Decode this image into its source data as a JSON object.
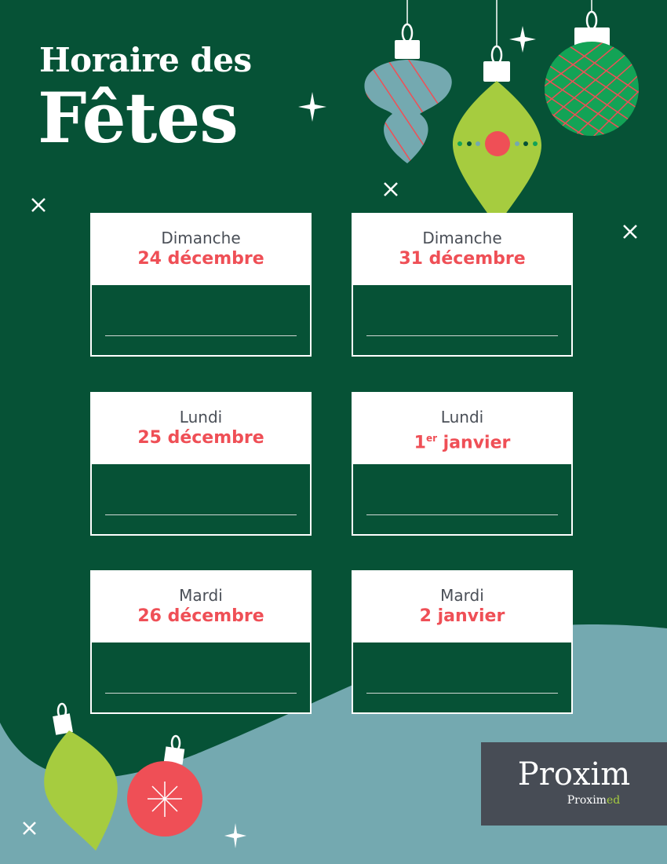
{
  "title": {
    "line1": "Horaire des",
    "line2": "Fêtes"
  },
  "cards": [
    {
      "day": "Dimanche",
      "date": "24 décembre",
      "sup": ""
    },
    {
      "day": "Dimanche",
      "date": "31 décembre",
      "sup": ""
    },
    {
      "day": "Lundi",
      "date": "25 décembre",
      "sup": ""
    },
    {
      "day": "Lundi",
      "date_pre": "1",
      "sup": "er",
      "date": " janvier"
    },
    {
      "day": "Mardi",
      "date": "26 décembre",
      "sup": ""
    },
    {
      "day": "Mardi",
      "date": "2 janvier",
      "sup": ""
    }
  ],
  "logo": {
    "brand": "Proxim",
    "sub_brand": "Proximed",
    "sub_main": "Proxim",
    "sub_accent": "ed"
  },
  "colors": {
    "background": "#065236",
    "accent_red": "#ef4f56",
    "lime": "#a6cc3f",
    "teal": "#74a9b0",
    "logo_bg": "#474c55"
  }
}
